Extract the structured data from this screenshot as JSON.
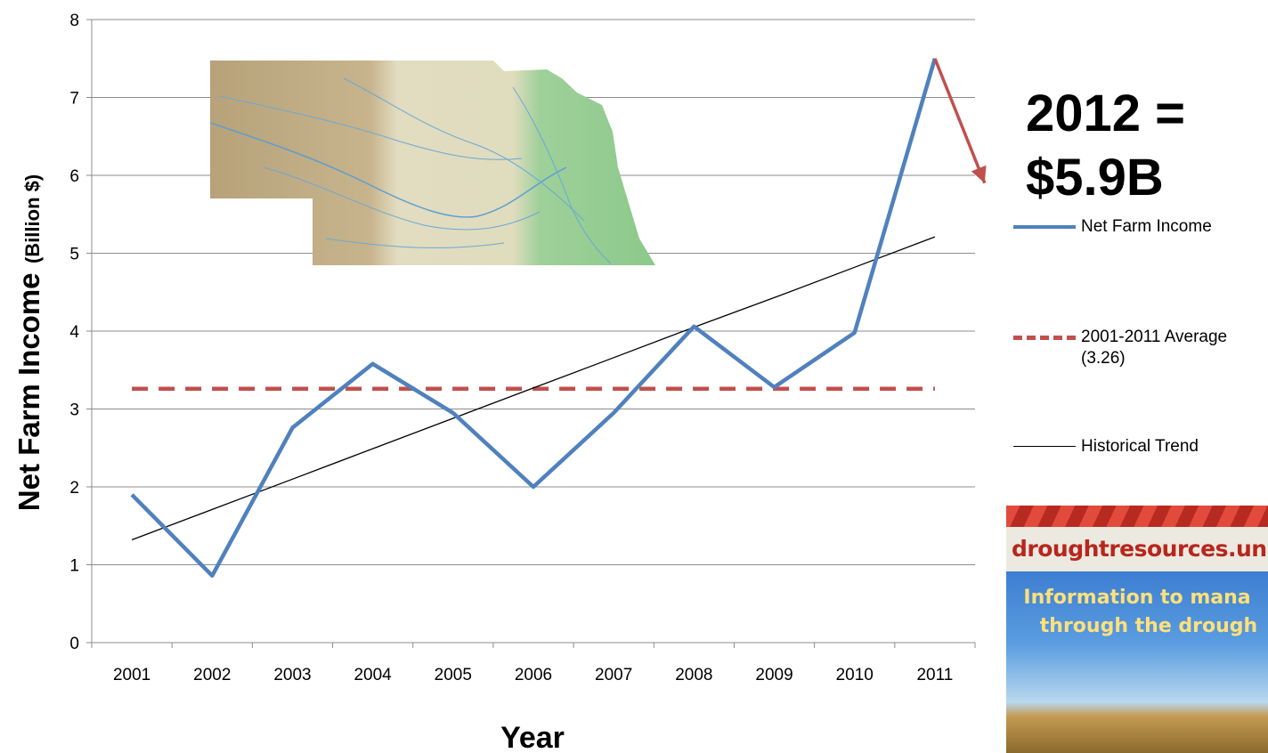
{
  "chart_data": {
    "type": "line",
    "title": "",
    "xlabel": "Year",
    "ylabel": "Net Farm Income",
    "ylabel_unit": "(Billion $)",
    "categories": [
      "2001",
      "2002",
      "2003",
      "2004",
      "2005",
      "2006",
      "2007",
      "2008",
      "2009",
      "2010",
      "2011"
    ],
    "ylim": [
      0,
      8
    ],
    "yticks": [
      0,
      1,
      2,
      3,
      4,
      5,
      6,
      7,
      8
    ],
    "grid": true,
    "legend_position": "right",
    "series": [
      {
        "name": "Net Farm Income",
        "kind": "line",
        "color": "#4f81bd",
        "values": [
          1.9,
          0.86,
          2.76,
          3.58,
          2.95,
          2.0,
          2.95,
          4.06,
          3.28,
          3.98,
          7.5
        ]
      },
      {
        "name": "2001-2011 Average",
        "name_extra": "(3.26)",
        "kind": "dashed",
        "color": "#c0504d",
        "values": [
          3.26,
          3.26,
          3.26,
          3.26,
          3.26,
          3.26,
          3.26,
          3.26,
          3.26,
          3.26,
          3.26
        ]
      },
      {
        "name": "Historical Trend",
        "kind": "trend",
        "color": "#000000",
        "values": [
          1.32,
          1.71,
          2.1,
          2.49,
          2.88,
          3.27,
          3.66,
          4.05,
          4.43,
          4.82,
          5.21
        ]
      }
    ],
    "annotation": {
      "line1": "2012 =",
      "line2": "$5.9B",
      "value": 5.9,
      "arrow_color": "#c0504d"
    }
  },
  "banner": {
    "url_text": "droughtresources.un",
    "message_line1": "Information to mana",
    "message_line2": "through the drough"
  }
}
